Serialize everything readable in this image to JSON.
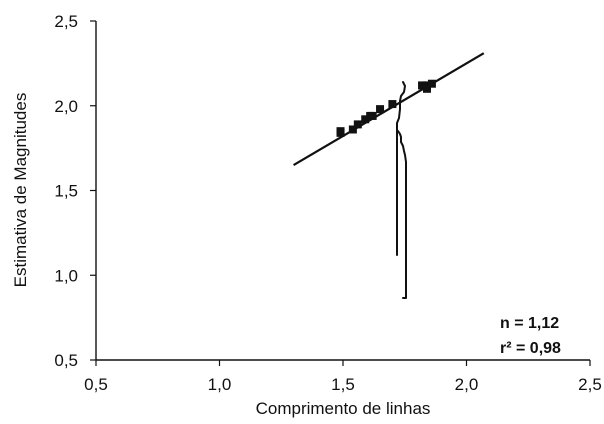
{
  "chart_data": {
    "type": "scatter",
    "title": "",
    "xlabel": "Comprimento de linhas",
    "ylabel": "Estimativa de Magnitudes",
    "xlim": [
      0.5,
      2.5
    ],
    "ylim": [
      0.5,
      2.5
    ],
    "xticks": [
      "0,5",
      "1,0",
      "1,5",
      "2,0",
      "2,5"
    ],
    "yticks": [
      "0,5",
      "1,0",
      "1,5",
      "2,0",
      "2,5"
    ],
    "grid": false,
    "series": [
      {
        "type": "scatter",
        "x": [
          1.49,
          1.49,
          1.54,
          1.56,
          1.59,
          1.61,
          1.62,
          1.65,
          1.7,
          1.82,
          1.84,
          1.84,
          1.86
        ],
        "y": [
          1.85,
          1.84,
          1.86,
          1.89,
          1.92,
          1.94,
          1.94,
          1.98,
          2.01,
          2.12,
          2.12,
          2.1,
          2.13
        ]
      },
      {
        "type": "line",
        "x": [
          1.3,
          2.07
        ],
        "y": [
          1.65,
          2.31
        ]
      }
    ],
    "annotations": [
      {
        "text": "n = 1,12"
      },
      {
        "text": "r² = 0,98"
      }
    ]
  },
  "stats": {
    "exponent": "n = 1,12",
    "r_squared": "r² = 0,98"
  }
}
